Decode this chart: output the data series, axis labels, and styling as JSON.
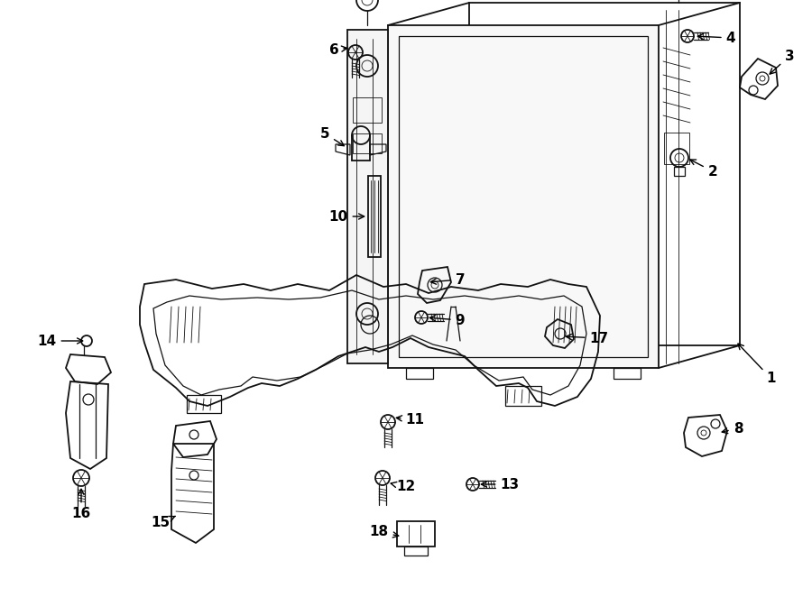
{
  "bg_color": "#ffffff",
  "line_color": "#111111",
  "fig_width": 9.0,
  "fig_height": 6.62,
  "dpi": 100
}
